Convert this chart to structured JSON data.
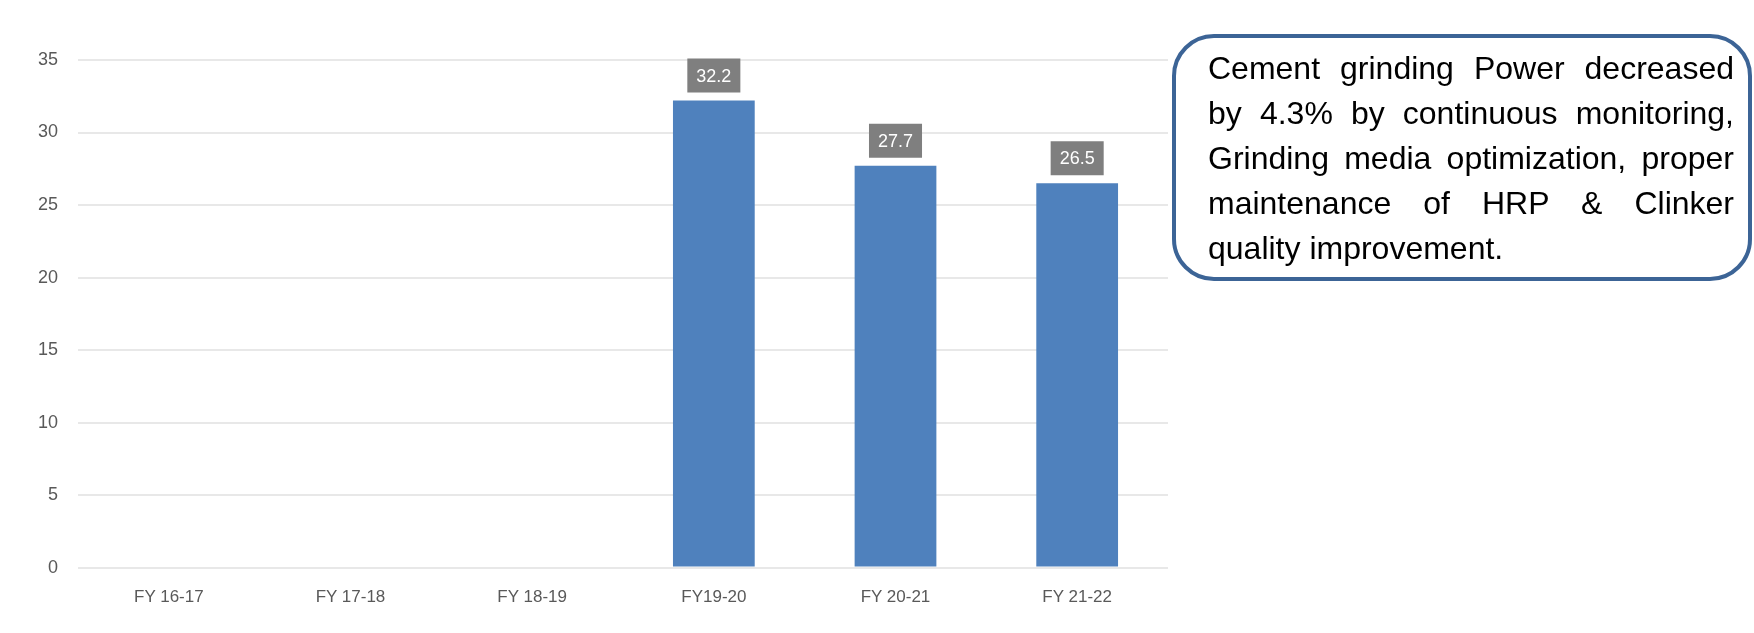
{
  "chart_data": {
    "type": "bar",
    "categories": [
      "FY 16-17",
      "FY 17-18",
      "FY 18-19",
      "FY19-20",
      "FY 20-21",
      "FY 21-22"
    ],
    "values": [
      null,
      null,
      null,
      32.2,
      27.7,
      26.5
    ],
    "color": "#4f81bd",
    "ylim": [
      0,
      35
    ],
    "yticks": [
      0,
      5,
      10,
      15,
      20,
      25,
      30,
      35
    ],
    "grid": "y",
    "data_labels": true,
    "annotations": [
      "Cement grinding Power decreased by 4.3% by continuous monitoring, Grinding media optimization, proper maintenance of HRP & Clinker quality improvement."
    ]
  }
}
